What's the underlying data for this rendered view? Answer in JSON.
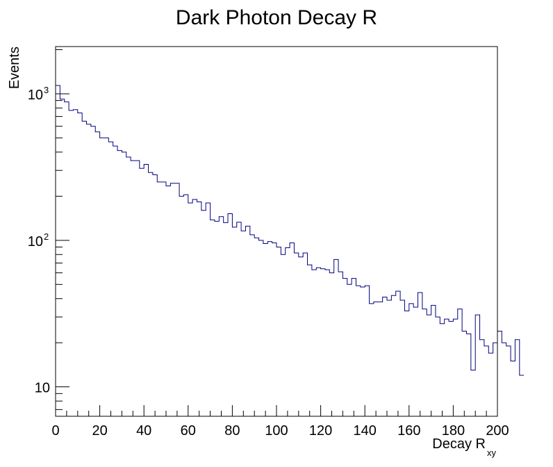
{
  "chart_data": {
    "type": "bar",
    "style": "step-histogram",
    "title": "Dark Photon Decay R",
    "xlabel": "Decay R",
    "xlabel_subscript": "xy",
    "ylabel": "Events",
    "yscale": "log",
    "xlim": [
      0,
      200
    ],
    "ylim": [
      6.3,
      2100
    ],
    "x_ticks": [
      0,
      20,
      40,
      60,
      80,
      100,
      120,
      140,
      160,
      180,
      200
    ],
    "x_tick_labels": [
      "0",
      "20",
      "40",
      "60",
      "80",
      "100",
      "120",
      "140",
      "160",
      "180",
      "200"
    ],
    "y_tick_labels": [
      {
        "value": 10,
        "base": "10",
        "exp": ""
      },
      {
        "value": 100,
        "base": "10",
        "exp": "2"
      },
      {
        "value": 1000,
        "base": "10",
        "exp": "3"
      }
    ],
    "bin_width": 2,
    "series": [
      {
        "name": "Dark Photon Decay R",
        "color": "#00007f",
        "bin_edges_start": 0,
        "values": [
          1140,
          920,
          880,
          770,
          780,
          740,
          650,
          620,
          600,
          550,
          500,
          500,
          470,
          440,
          410,
          400,
          370,
          350,
          350,
          310,
          330,
          290,
          280,
          250,
          250,
          235,
          245,
          245,
          200,
          205,
          180,
          190,
          183,
          160,
          180,
          138,
          135,
          145,
          132,
          152,
          123,
          133,
          116,
          125,
          109,
          104,
          100,
          95,
          98,
          96,
          90,
          80,
          89,
          96,
          82,
          77,
          82,
          68,
          63,
          65,
          64,
          63,
          60,
          74,
          61,
          55,
          50,
          55,
          49,
          48,
          49,
          37,
          38,
          38,
          41,
          39,
          42,
          45,
          39,
          33,
          37,
          35,
          44,
          34,
          31,
          36,
          30,
          27,
          29,
          28,
          29,
          34,
          24,
          23,
          13,
          31,
          21,
          19,
          17,
          20,
          24,
          20,
          19,
          15,
          21,
          12
        ]
      }
    ]
  },
  "colors": {
    "background": "#ffffff",
    "frame": "#000000",
    "histogram_line": "#00007f"
  }
}
